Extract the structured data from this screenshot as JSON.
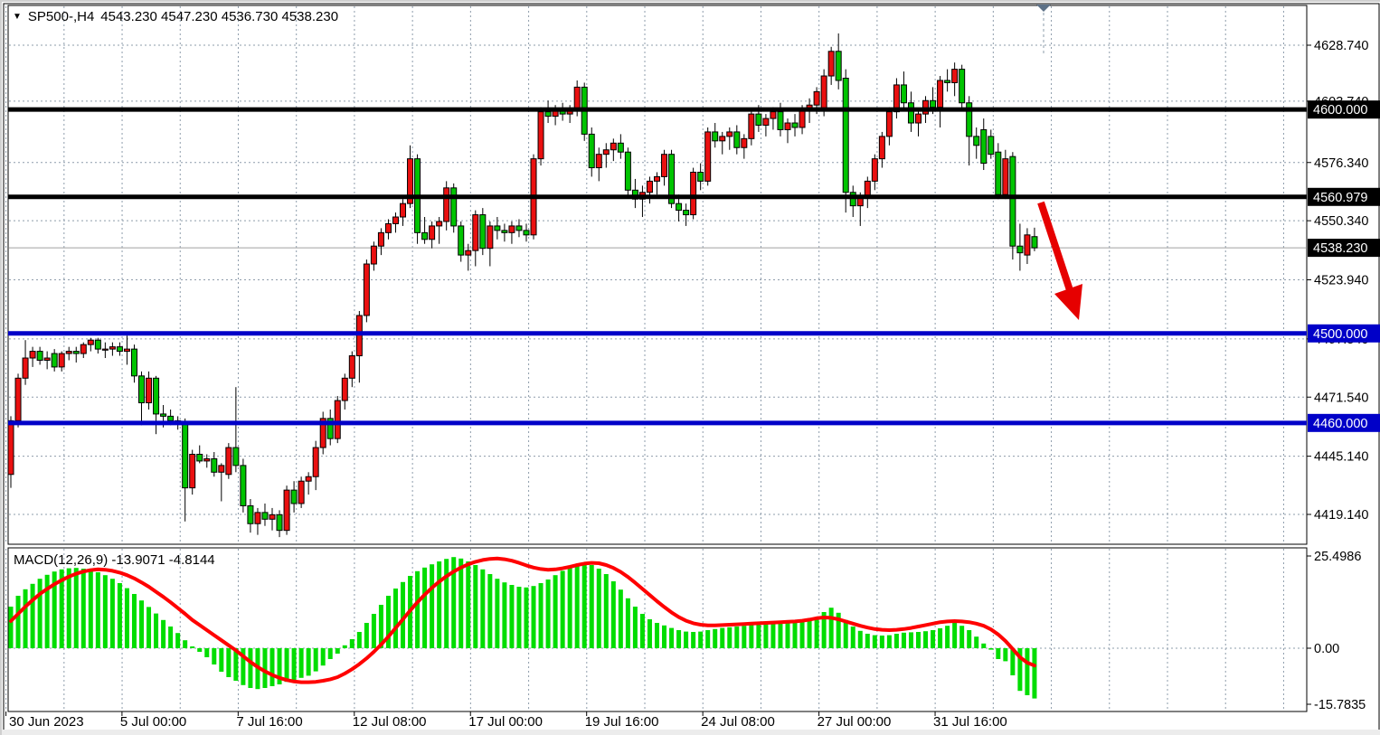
{
  "header": {
    "dropdown_icon": "▼",
    "symbol_period": "SP500-,H4",
    "ohlc_text": "4543.230 4547.230 4536.730 4538.230"
  },
  "chart_data": {
    "type": "candlestick_with_macd",
    "symbol": "SP500-",
    "timeframe": "H4",
    "note": "red body = bullish, green body = bearish",
    "price_panel": {
      "y_ticks": [
        "4628.740",
        "4603.740",
        "4576.340",
        "4550.340",
        "4523.940",
        "4497.540",
        "4471.540",
        "4445.140",
        "4419.140"
      ],
      "y_tick_values": [
        4628.74,
        4603.74,
        4576.34,
        4550.34,
        4523.94,
        4497.54,
        4471.54,
        4445.14,
        4419.14
      ],
      "hlines": [
        {
          "price": 4600.0,
          "label": "4600.000",
          "color": "#000000"
        },
        {
          "price": 4560.979,
          "label": "4560.979",
          "color": "#000000"
        },
        {
          "price": 4500.0,
          "label": "4500.000",
          "color": "#0000C8"
        },
        {
          "price": 4460.0,
          "label": "4460.000",
          "color": "#0000C8"
        }
      ],
      "current_price": {
        "value": 4538.23,
        "label": "4538.230"
      },
      "candles": [
        [
          4437,
          4463,
          4431,
          4461
        ],
        [
          4461,
          4482,
          4458,
          4480
        ],
        [
          4480,
          4497,
          4477,
          4489
        ],
        [
          4489,
          4494,
          4485,
          4492
        ],
        [
          4492,
          4494,
          4486,
          4488
        ],
        [
          4488,
          4492,
          4484,
          4489
        ],
        [
          4491,
          4493,
          4483,
          4485
        ],
        [
          4485,
          4492,
          4483,
          4491
        ],
        [
          4491,
          4494,
          4488,
          4492
        ],
        [
          4492,
          4494,
          4487,
          4491
        ],
        [
          4491,
          4496,
          4489,
          4495
        ],
        [
          4495,
          4498,
          4492,
          4497
        ],
        [
          4497,
          4498,
          4491,
          4493
        ],
        [
          4493,
          4496,
          4489,
          4493
        ],
        [
          4493,
          4496,
          4490,
          4494
        ],
        [
          4494,
          4496,
          4490,
          4492
        ],
        [
          4492,
          4499,
          4486,
          4493
        ],
        [
          4493,
          4495,
          4478,
          4481
        ],
        [
          4481,
          4483,
          4459,
          4469
        ],
        [
          4469,
          4483,
          4466,
          4480
        ],
        [
          4480,
          4481,
          4455,
          4464
        ],
        [
          4464,
          4468,
          4458,
          4463
        ],
        [
          4463,
          4466,
          4459,
          4461
        ],
        [
          4461,
          4463,
          4457,
          4460
        ],
        [
          4460,
          4462,
          4416,
          4431
        ],
        [
          4431,
          4448,
          4428,
          4446
        ],
        [
          4446,
          4450,
          4442,
          4443
        ],
        [
          4443,
          4446,
          4440,
          4444
        ],
        [
          4444,
          4447,
          4436,
          4438
        ],
        [
          4438,
          4442,
          4425,
          4441
        ],
        [
          4437,
          4451,
          4435,
          4449
        ],
        [
          4449,
          4476,
          4438,
          4441
        ],
        [
          4441,
          4444,
          4420,
          4423
        ],
        [
          4423,
          4426,
          4411,
          4415
        ],
        [
          4415,
          4422,
          4410,
          4420
        ],
        [
          4420,
          4424,
          4414,
          4417
        ],
        [
          4417,
          4422,
          4412,
          4419
        ],
        [
          4419,
          4421,
          4409,
          4412
        ],
        [
          4412,
          4432,
          4410,
          4430
        ],
        [
          4430,
          4434,
          4420,
          4424
        ],
        [
          4424,
          4436,
          4422,
          4434
        ],
        [
          4434,
          4438,
          4428,
          4436
        ],
        [
          4436,
          4452,
          4430,
          4449
        ],
        [
          4449,
          4465,
          4446,
          4462
        ],
        [
          4462,
          4466,
          4450,
          4453
        ],
        [
          4453,
          4472,
          4451,
          4470
        ],
        [
          4470,
          4482,
          4466,
          4480
        ],
        [
          4480,
          4492,
          4476,
          4490
        ],
        [
          4490,
          4510,
          4478,
          4508
        ],
        [
          4508,
          4533,
          4505,
          4531
        ],
        [
          4531,
          4541,
          4528,
          4539
        ],
        [
          4539,
          4547,
          4535,
          4545
        ],
        [
          4545,
          4551,
          4542,
          4549
        ],
        [
          4549,
          4554,
          4545,
          4552
        ],
        [
          4552,
          4560,
          4548,
          4558
        ],
        [
          4558,
          4584,
          4556,
          4578
        ],
        [
          4578,
          4580,
          4540,
          4545
        ],
        [
          4545,
          4552,
          4540,
          4542
        ],
        [
          4542,
          4550,
          4538,
          4548
        ],
        [
          4548,
          4552,
          4540,
          4550
        ],
        [
          4550,
          4568,
          4546,
          4565
        ],
        [
          4565,
          4567,
          4545,
          4548
        ],
        [
          4548,
          4550,
          4532,
          4535
        ],
        [
          4535,
          4540,
          4528,
          4537
        ],
        [
          4537,
          4555,
          4530,
          4553
        ],
        [
          4553,
          4556,
          4535,
          4538
        ],
        [
          4538,
          4550,
          4530,
          4548
        ],
        [
          4548,
          4552,
          4542,
          4546
        ],
        [
          4546,
          4549,
          4541,
          4545
        ],
        [
          4545,
          4550,
          4540,
          4548
        ],
        [
          4548,
          4551,
          4543,
          4546
        ],
        [
          4546,
          4549,
          4541,
          4544
        ],
        [
          4544,
          4580,
          4542,
          4578
        ],
        [
          4578,
          4601,
          4575,
          4599
        ],
        [
          4599,
          4604,
          4594,
          4597
        ],
        [
          4597,
          4602,
          4593,
          4600
        ],
        [
          4600,
          4603,
          4595,
          4598
        ],
        [
          4598,
          4602,
          4594,
          4600
        ],
        [
          4600,
          4613,
          4597,
          4610
        ],
        [
          4610,
          4612,
          4586,
          4589
        ],
        [
          4589,
          4592,
          4570,
          4574
        ],
        [
          4574,
          4583,
          4568,
          4580
        ],
        [
          4580,
          4585,
          4574,
          4582
        ],
        [
          4582,
          4587,
          4577,
          4585
        ],
        [
          4585,
          4589,
          4578,
          4581
        ],
        [
          4581,
          4583,
          4561,
          4564
        ],
        [
          4564,
          4569,
          4556,
          4560
        ],
        [
          4560,
          4566,
          4552,
          4563
        ],
        [
          4563,
          4570,
          4558,
          4568
        ],
        [
          4568,
          4572,
          4562,
          4570
        ],
        [
          4570,
          4582,
          4566,
          4580
        ],
        [
          4580,
          4582,
          4556,
          4558
        ],
        [
          4558,
          4562,
          4550,
          4555
        ],
        [
          4555,
          4558,
          4548,
          4553
        ],
        [
          4553,
          4574,
          4551,
          4572
        ],
        [
          4572,
          4576,
          4564,
          4568
        ],
        [
          4568,
          4592,
          4566,
          4590
        ],
        [
          4590,
          4594,
          4583,
          4586
        ],
        [
          4586,
          4590,
          4580,
          4588
        ],
        [
          4588,
          4592,
          4582,
          4590
        ],
        [
          4590,
          4593,
          4580,
          4583
        ],
        [
          4583,
          4589,
          4578,
          4587
        ],
        [
          4587,
          4600,
          4584,
          4598
        ],
        [
          4598,
          4602,
          4590,
          4593
        ],
        [
          4593,
          4598,
          4588,
          4596
        ],
        [
          4596,
          4601,
          4591,
          4599
        ],
        [
          4599,
          4603,
          4588,
          4591
        ],
        [
          4591,
          4596,
          4585,
          4594
        ],
        [
          4594,
          4598,
          4588,
          4592
        ],
        [
          4592,
          4602,
          4589,
          4600
        ],
        [
          4600,
          4605,
          4594,
          4602
        ],
        [
          4602,
          4610,
          4598,
          4608
        ],
        [
          4600,
          4618,
          4597,
          4615
        ],
        [
          4615,
          4628,
          4611,
          4626
        ],
        [
          4626,
          4634,
          4609,
          4613
        ],
        [
          4614,
          4618,
          4554,
          4563
        ],
        [
          4563,
          4566,
          4552,
          4557
        ],
        [
          4557,
          4563,
          4548,
          4561
        ],
        [
          4561,
          4570,
          4556,
          4568
        ],
        [
          4568,
          4580,
          4564,
          4578
        ],
        [
          4578,
          4590,
          4574,
          4588
        ],
        [
          4588,
          4601,
          4584,
          4599
        ],
        [
          4599,
          4614,
          4596,
          4611
        ],
        [
          4611,
          4617,
          4600,
          4603
        ],
        [
          4603,
          4608,
          4590,
          4594
        ],
        [
          4594,
          4600,
          4588,
          4598
        ],
        [
          4598,
          4606,
          4594,
          4604
        ],
        [
          4604,
          4610,
          4598,
          4601
        ],
        [
          4601,
          4615,
          4592,
          4613
        ],
        [
          4613,
          4618,
          4608,
          4612
        ],
        [
          4612,
          4621,
          4606,
          4618
        ],
        [
          4618,
          4620,
          4600,
          4603
        ],
        [
          4603,
          4606,
          4575,
          4588
        ],
        [
          4588,
          4592,
          4578,
          4584
        ],
        [
          4591,
          4596,
          4573,
          4576
        ],
        [
          4588,
          4591,
          4578,
          4580
        ],
        [
          4581,
          4585,
          4560,
          4562
        ],
        [
          4562,
          4582,
          4560,
          4578
        ],
        [
          4579,
          4581,
          4533,
          4539
        ],
        [
          4539,
          4549,
          4528,
          4536
        ],
        [
          4535,
          4547,
          4531,
          4544
        ],
        [
          4543.23,
          4547.23,
          4536.73,
          4538.23
        ]
      ]
    },
    "macd_panel": {
      "label": "MACD(12,26,9)",
      "values_text": " -13.9071 -4.8144",
      "current_macd": -13.9071,
      "current_signal": -4.8144,
      "y_ticks": [
        "25.4986",
        "0.00",
        "-15.7835"
      ],
      "y_tick_values": [
        25.4986,
        0,
        -15.7835
      ],
      "histogram": [
        11.5,
        14.5,
        16.3,
        17.8,
        19.2,
        20.3,
        21.2,
        21.8,
        22.1,
        22.2,
        22.0,
        21.6,
        21.0,
        20.2,
        19.2,
        18.0,
        16.6,
        15.0,
        13.2,
        11.4,
        9.6,
        7.8,
        6.0,
        4.2,
        2.2,
        0.5,
        -1.0,
        -2.5,
        -4.5,
        -6.5,
        -8.0,
        -9.0,
        -10.2,
        -11.0,
        -11.3,
        -11.0,
        -10.5,
        -10.0,
        -9.3,
        -8.8,
        -8.2,
        -7.6,
        -6.4,
        -4.8,
        -3.0,
        -1.5,
        0.8,
        2.5,
        4.5,
        7.0,
        9.5,
        12.0,
        14.5,
        16.5,
        18.3,
        20.0,
        21.3,
        22.3,
        23.2,
        24.0,
        24.7,
        25.2,
        24.8,
        24.0,
        23.0,
        21.8,
        20.5,
        19.2,
        18.2,
        17.5,
        17.0,
        16.8,
        17.2,
        18.0,
        19.0,
        20.2,
        21.4,
        22.4,
        23.2,
        23.5,
        23.0,
        22.0,
        20.5,
        18.5,
        16.2,
        13.8,
        11.5,
        9.5,
        8.0,
        7.0,
        6.3,
        5.6,
        5.0,
        4.6,
        4.5,
        4.6,
        5.0,
        5.3,
        5.6,
        5.8,
        6.0,
        6.2,
        6.5,
        6.6,
        6.7,
        6.8,
        6.9,
        7.0,
        7.1,
        7.3,
        7.6,
        8.4,
        10.0,
        11.2,
        9.8,
        7.8,
        6.0,
        4.8,
        4.0,
        3.6,
        3.5,
        3.6,
        4.0,
        4.3,
        4.4,
        4.5,
        4.7,
        5.0,
        5.5,
        6.2,
        7.0,
        6.2,
        5.0,
        3.2,
        1.3,
        -0.4,
        -3.0,
        -3.6,
        -7.5,
        -11.8,
        -13.0,
        -13.9
      ],
      "signal": [
        7.5,
        9.5,
        11.5,
        13.3,
        15.0,
        16.4,
        17.7,
        18.8,
        19.8,
        20.6,
        21.2,
        21.6,
        21.8,
        21.7,
        21.4,
        20.9,
        20.2,
        19.3,
        18.2,
        17.0,
        15.6,
        14.2,
        12.7,
        11.1,
        9.5,
        7.8,
        6.4,
        5.0,
        3.6,
        2.2,
        0.8,
        -0.6,
        -2.2,
        -3.8,
        -5.2,
        -6.4,
        -7.4,
        -8.2,
        -8.8,
        -9.2,
        -9.4,
        -9.4,
        -9.3,
        -9.0,
        -8.6,
        -8.0,
        -7.0,
        -5.8,
        -4.4,
        -2.8,
        -1.0,
        1.0,
        3.2,
        5.6,
        8.0,
        10.4,
        12.7,
        14.8,
        16.7,
        18.4,
        19.9,
        21.2,
        22.3,
        23.2,
        23.9,
        24.4,
        24.7,
        24.8,
        24.6,
        24.2,
        23.6,
        22.9,
        22.3,
        21.9,
        21.7,
        21.8,
        22.1,
        22.5,
        23.0,
        23.4,
        23.6,
        23.5,
        23.0,
        22.2,
        21.1,
        19.7,
        18.1,
        16.4,
        14.7,
        13.0,
        11.4,
        9.9,
        8.6,
        7.6,
        6.9,
        6.5,
        6.3,
        6.3,
        6.4,
        6.5,
        6.6,
        6.7,
        6.8,
        6.9,
        7.0,
        7.1,
        7.2,
        7.3,
        7.4,
        7.6,
        7.9,
        8.3,
        8.5,
        8.4,
        8.0,
        7.4,
        6.8,
        6.2,
        5.7,
        5.3,
        5.1,
        5.0,
        5.1,
        5.3,
        5.6,
        6.0,
        6.4,
        6.8,
        7.2,
        7.4,
        7.5,
        7.4,
        7.2,
        6.8,
        6.2,
        5.2,
        3.8,
        2.0,
        -0.2,
        -2.5,
        -4.0,
        -4.8
      ]
    },
    "x_axis": {
      "labels": [
        "30 Jun 2023",
        "5 Jul 00:00",
        "7 Jul 16:00",
        "12 Jul 08:00",
        "17 Jul 00:00",
        "19 Jul 16:00",
        "24 Jul 08:00",
        "27 Jul 00:00",
        "31 Jul 16:00"
      ]
    },
    "annotations": {
      "trend_arrow": {
        "from": [
          1149,
          222
        ],
        "to": [
          1191,
          352
        ],
        "color": "#E60000"
      },
      "shift_marker_x": 1152
    }
  },
  "colors": {
    "bull": "#EA1010",
    "bear": "#00C400",
    "hist": "#00DD00",
    "signal": "#FF0000",
    "grid": "#8E9CAB",
    "black_line": "#000000",
    "blue_line": "#0000C8",
    "current_price_line": "#A0A0A0",
    "label_text": "#000000"
  }
}
